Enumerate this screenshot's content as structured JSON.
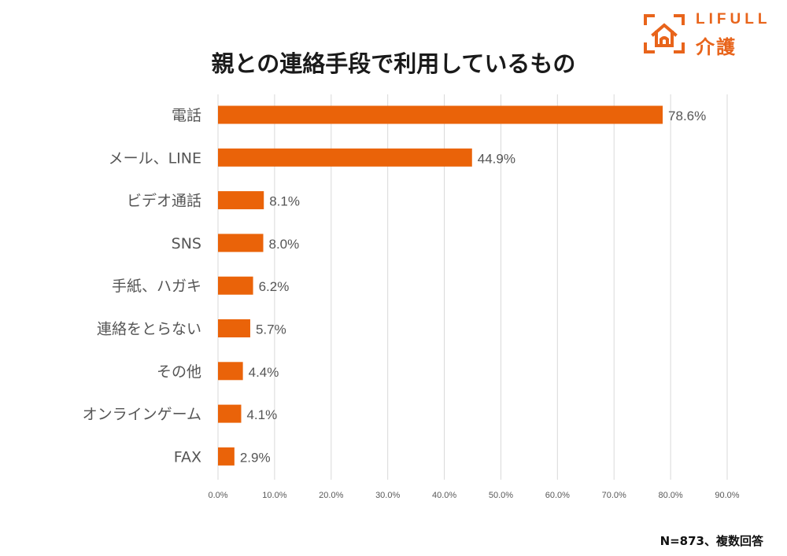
{
  "brand": {
    "name_en": "LIFULL",
    "name_jp": "介護",
    "color": "#e8641b"
  },
  "chart_data": {
    "type": "bar",
    "orientation": "horizontal",
    "title": "親との連絡手段で利用しているもの",
    "categories": [
      "電話",
      "メール、LINE",
      "ビデオ通話",
      "SNS",
      "手紙、ハガキ",
      "連絡をとらない",
      "その他",
      "オンラインゲーム",
      "FAX"
    ],
    "values": [
      78.6,
      44.9,
      8.1,
      8.0,
      6.2,
      5.7,
      4.4,
      4.1,
      2.9
    ],
    "value_labels": [
      "78.6%",
      "44.9%",
      "8.1%",
      "8.0%",
      "6.2%",
      "5.7%",
      "4.4%",
      "4.1%",
      "2.9%"
    ],
    "xlim": [
      0,
      90
    ],
    "x_ticks": [
      "0.0%",
      "10.0%",
      "20.0%",
      "30.0%",
      "40.0%",
      "50.0%",
      "60.0%",
      "70.0%",
      "80.0%",
      "90.0%"
    ],
    "xlabel": "",
    "ylabel": "",
    "bar_color": "#ea6309",
    "grid": true,
    "legend": "none"
  },
  "footnote": "N=873、複数回答"
}
